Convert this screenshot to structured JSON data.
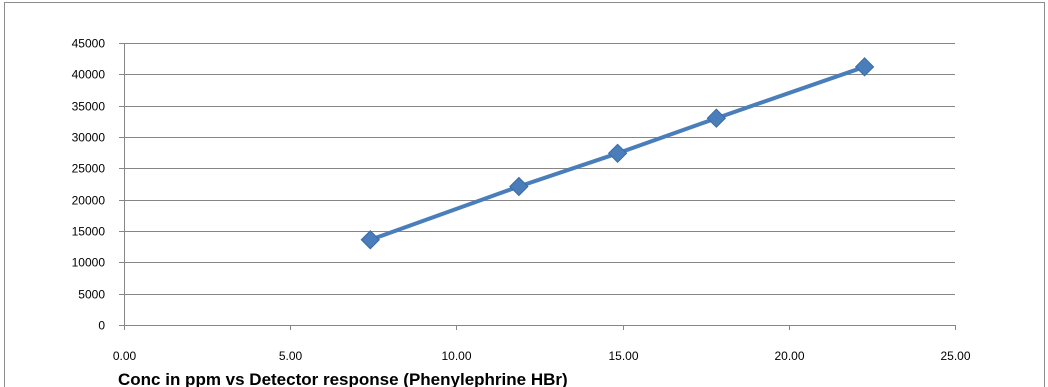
{
  "chart_data": {
    "type": "scatter",
    "title": "Conc in ppm vs Detector response (Phenylephrine HBr)",
    "xlabel": "",
    "ylabel": "",
    "xlim": [
      0,
      25
    ],
    "ylim": [
      0,
      45000
    ],
    "x_ticks": [
      "0.00",
      "5.00",
      "10.00",
      "15.00",
      "20.00",
      "25.00"
    ],
    "y_ticks": [
      "0",
      "5000",
      "10000",
      "15000",
      "20000",
      "25000",
      "30000",
      "35000",
      "40000",
      "45000"
    ],
    "grid": true,
    "legend": "none",
    "series": [
      {
        "marker": "diamond",
        "line": "straight",
        "color": "#4a7ebb",
        "x": [
          7.41,
          11.88,
          14.85,
          17.82,
          22.28
        ],
        "y": [
          13600,
          22100,
          27400,
          33000,
          41200
        ]
      }
    ]
  }
}
